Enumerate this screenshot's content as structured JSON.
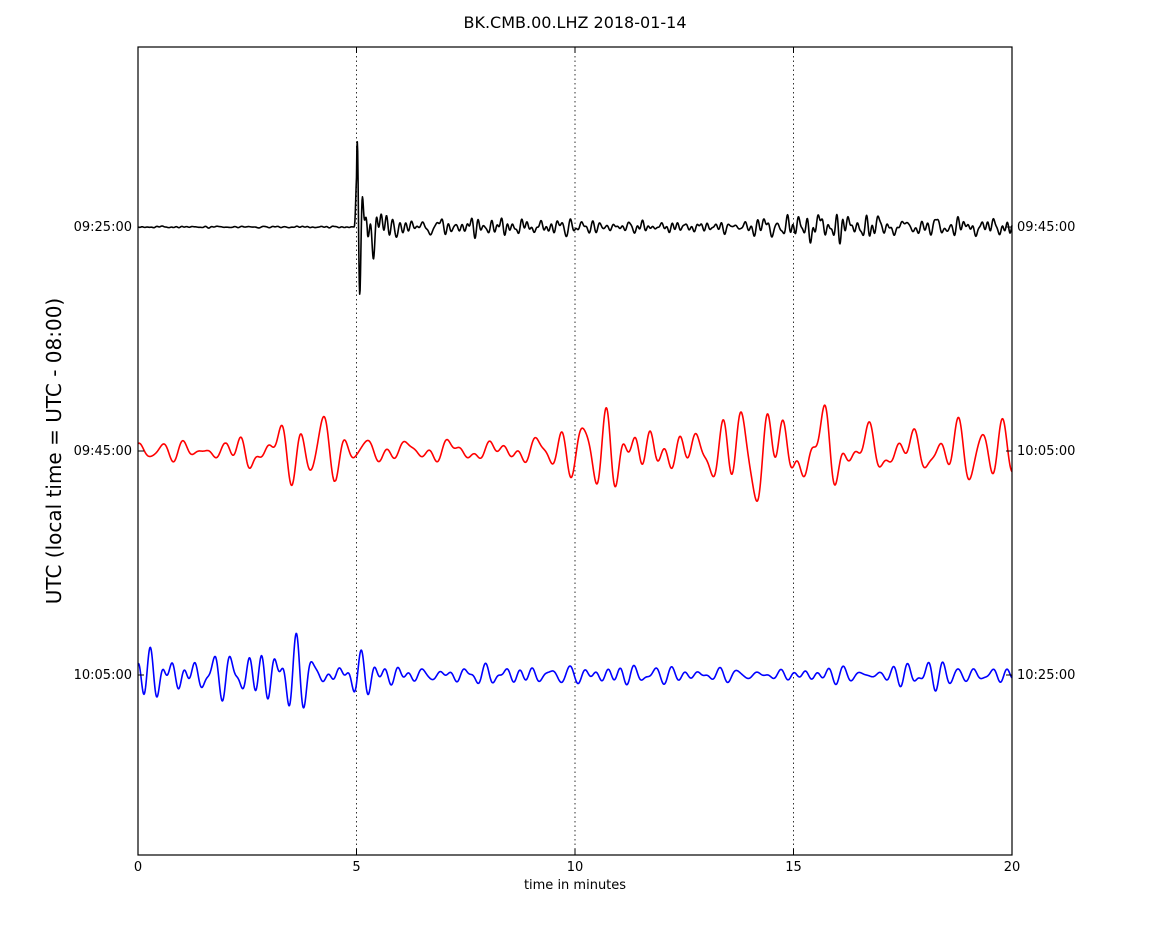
{
  "chart_data": {
    "type": "line",
    "title": "BK.CMB.00.LHZ 2018-01-14",
    "xlabel": "time in minutes",
    "ylabel": "UTC (local time = UTC - 08:00)",
    "xlim": [
      0,
      20
    ],
    "x_ticks": [
      "0",
      "5",
      "10",
      "15",
      "20"
    ],
    "x_tick_values": [
      0,
      5,
      10,
      15,
      20
    ],
    "grid": "vertical dotted at x ticks",
    "series": [
      {
        "color": "#000000",
        "left_label": "09:25:00",
        "right_label": "09:45:00",
        "onset_minute": 5.0,
        "envelope": [
          [
            0,
            0.02
          ],
          [
            4.95,
            0.02
          ],
          [
            5.0,
            1.0
          ],
          [
            5.2,
            0.8
          ],
          [
            5.6,
            0.45
          ],
          [
            6.5,
            0.25
          ],
          [
            8,
            0.22
          ],
          [
            10,
            0.2
          ],
          [
            12,
            0.12
          ],
          [
            14,
            0.18
          ],
          [
            14.6,
            0.4
          ],
          [
            15.5,
            0.35
          ],
          [
            17,
            0.25
          ],
          [
            19.5,
            0.2
          ],
          [
            20,
            0.2
          ]
        ]
      },
      {
        "color": "#ff0000",
        "left_label": "09:45:00",
        "right_label": "10:05:00",
        "envelope": [
          [
            0,
            0.15
          ],
          [
            2,
            0.2
          ],
          [
            2.5,
            0.5
          ],
          [
            4,
            0.45
          ],
          [
            5,
            0.15
          ],
          [
            9,
            0.3
          ],
          [
            10,
            0.45
          ],
          [
            10.8,
            0.9
          ],
          [
            11.5,
            1.0
          ],
          [
            12,
            0.6
          ],
          [
            13,
            0.5
          ],
          [
            14,
            0.85
          ],
          [
            15,
            0.8
          ],
          [
            15.8,
            0.7
          ],
          [
            17,
            0.4
          ],
          [
            20,
            0.4
          ]
        ]
      },
      {
        "color": "#0000ff",
        "left_label": "10:05:00",
        "right_label": "10:25:00",
        "envelope": [
          [
            0,
            0.65
          ],
          [
            2,
            0.6
          ],
          [
            4.2,
            0.8
          ],
          [
            5,
            0.6
          ],
          [
            5.5,
            0.3
          ],
          [
            8,
            0.35
          ],
          [
            10,
            0.3
          ],
          [
            15,
            0.35
          ],
          [
            16,
            0.3
          ],
          [
            17,
            0.15
          ],
          [
            18.2,
            0.5
          ],
          [
            19,
            0.35
          ],
          [
            20,
            0.3
          ]
        ]
      }
    ]
  }
}
